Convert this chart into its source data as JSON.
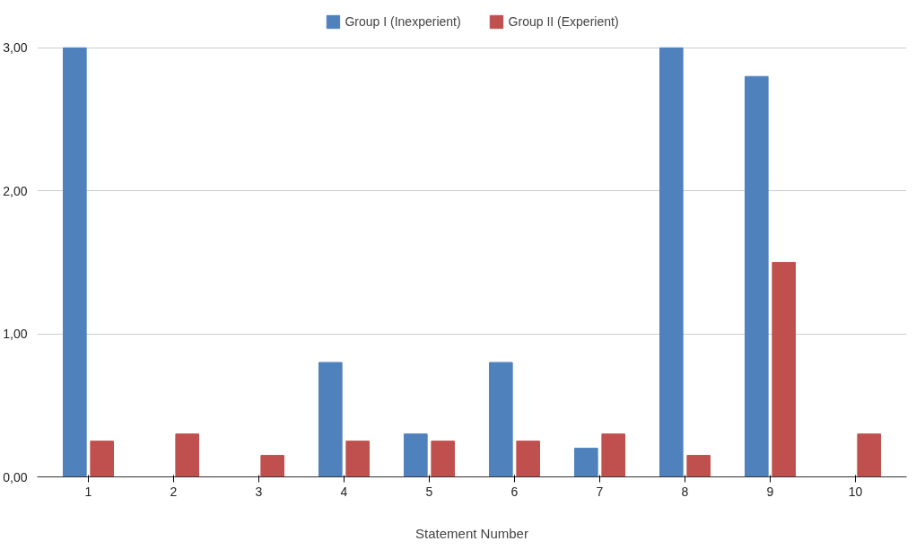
{
  "chart_data": {
    "type": "bar",
    "xlabel": "Statement Number",
    "categories": [
      "1",
      "2",
      "3",
      "4",
      "5",
      "6",
      "7",
      "8",
      "9",
      "10"
    ],
    "series": [
      {
        "name": "Group I (Inexperient)",
        "color": "#4f81bd",
        "values": [
          3.0,
          0,
          0,
          0.8,
          0.3,
          0.8,
          0.2,
          3.0,
          2.8,
          0
        ]
      },
      {
        "name": "Group II (Experient)",
        "color": "#c0504d",
        "values": [
          0.25,
          0.3,
          0.15,
          0.25,
          0.25,
          0.25,
          0.3,
          0.15,
          1.5,
          0.3
        ]
      }
    ],
    "ylim": [
      0,
      3
    ],
    "yticks": [
      {
        "value": 0,
        "label": "0,00"
      },
      {
        "value": 1,
        "label": "1,00"
      },
      {
        "value": 2,
        "label": "2,00"
      },
      {
        "value": 3,
        "label": "3,00"
      }
    ],
    "grid": "y",
    "legend": "top"
  }
}
